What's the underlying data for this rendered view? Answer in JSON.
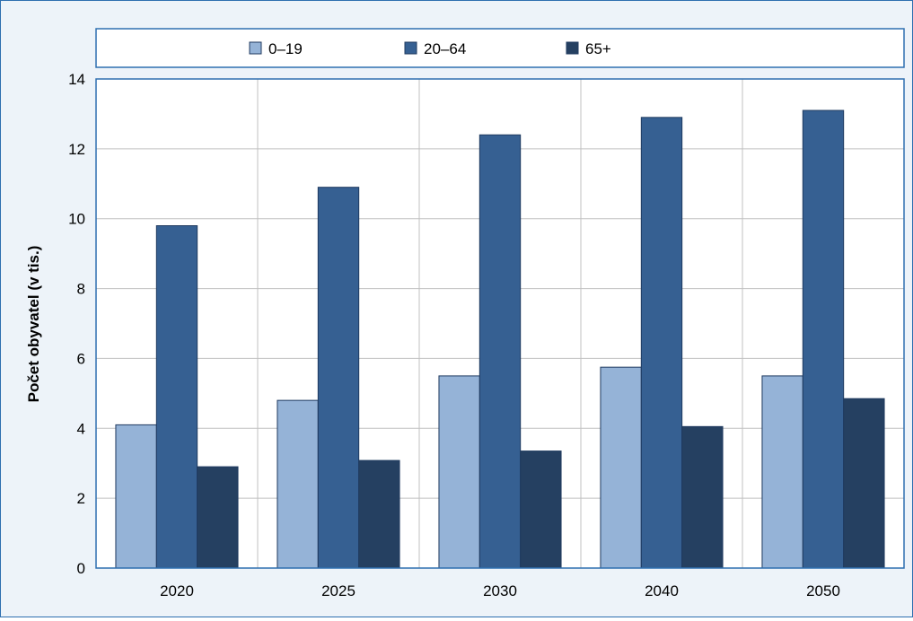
{
  "chart_data": {
    "type": "bar",
    "ylabel": "Počet obyvatel (v tis.)",
    "xlabel": "",
    "categories": [
      "2020",
      "2025",
      "2030",
      "2040",
      "2050"
    ],
    "series": [
      {
        "name": "0–19",
        "values": [
          4.1,
          4.8,
          5.5,
          5.75,
          5.5
        ]
      },
      {
        "name": "20–64",
        "values": [
          9.8,
          10.9,
          12.4,
          12.9,
          13.1
        ]
      },
      {
        "name": "65+",
        "values": [
          2.9,
          3.08,
          3.35,
          4.05,
          4.85
        ]
      }
    ],
    "ylim": [
      0,
      14
    ],
    "yticks": [
      "0",
      "2",
      "4",
      "6",
      "8",
      "10",
      "12",
      "14"
    ],
    "grid": true,
    "legend_position": "top",
    "colors": {
      "series": [
        "#95b3d7",
        "#366092",
        "#254061"
      ],
      "plot_background": "#ffffff",
      "page_background": "#edf3f9",
      "border": "#2e6fb0",
      "gridline": "#c0c0c0"
    }
  }
}
